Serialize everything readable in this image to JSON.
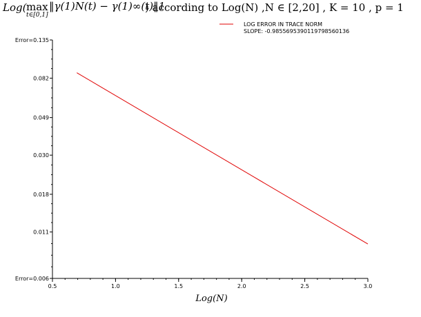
{
  "title": {
    "lead": "Log(",
    "max_op": "max",
    "max_sub": "t∈[0,1]",
    "norm_expr": "‖γ(1)N(t) − γ(1)∞(t)‖1",
    "trail": ") according to Log(N) ,N ∈ [2,20] , K = 10 , p = 1"
  },
  "chart_data": {
    "type": "line",
    "xlabel": "Log(N)",
    "ylabel": "",
    "xlim": [
      0.5,
      3.0
    ],
    "ylim": [
      0.006,
      0.135
    ],
    "log_y": true,
    "grid": false,
    "legend_position": "top-right",
    "x_ticks": [
      "0.5",
      "1.0",
      "1.5",
      "2.0",
      "2.5",
      "3.0"
    ],
    "y_ticks": [
      "Error=0.006",
      "0.011",
      "0.018",
      "0.030",
      "0.049",
      "0.082",
      "Error=0.135"
    ],
    "series": [
      {
        "name": "LOG ERROR IN TRACE NORM",
        "annotation": "SLOPE: -0.985569539011979856013 6",
        "color": "#e00000",
        "x": [
          0.693,
          3.0
        ],
        "y": [
          0.088,
          0.0094
        ]
      }
    ]
  }
}
